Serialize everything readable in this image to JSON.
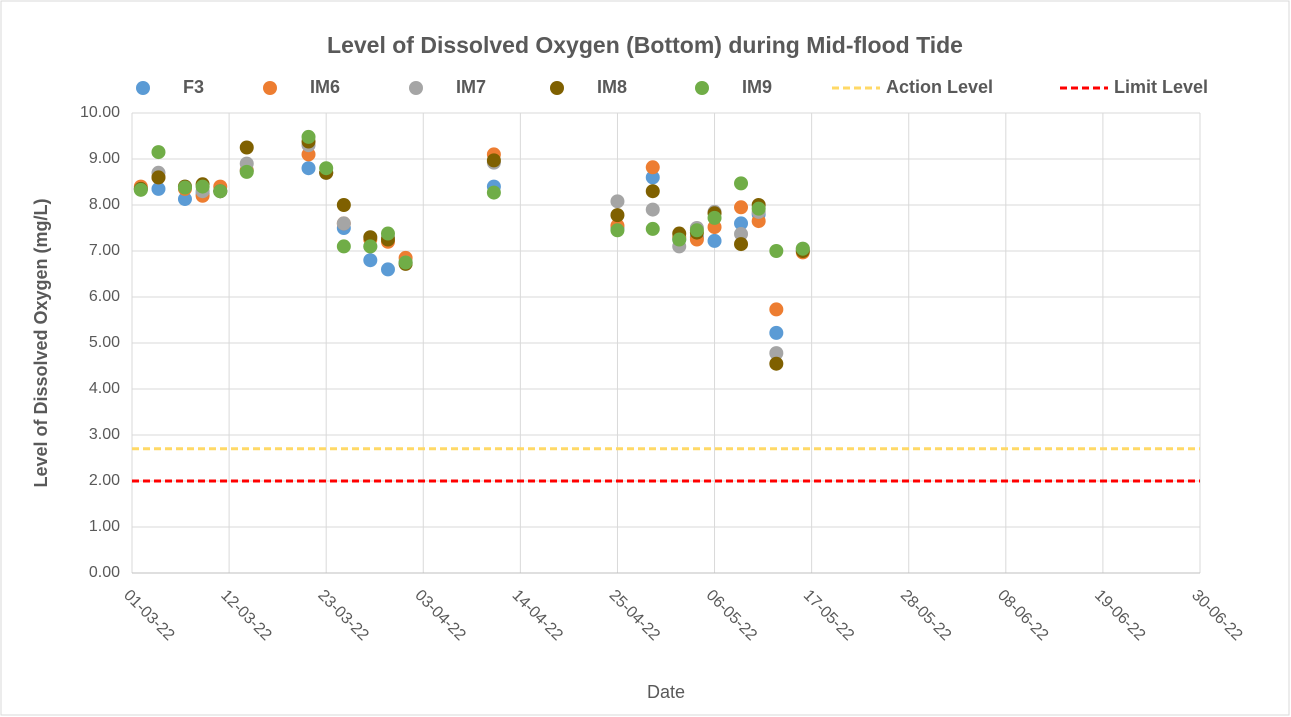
{
  "chart_data": {
    "type": "scatter",
    "title": "Level of Dissolved Oxygen (Bottom) during Mid-flood Tide",
    "xlabel": "Date",
    "ylabel": "Level of Dissolved Oxygen (mg/L)",
    "x": [
      "2022-03-02",
      "2022-03-04",
      "2022-03-07",
      "2022-03-09",
      "2022-03-11",
      "2022-03-14",
      "2022-03-21",
      "2022-03-23",
      "2022-03-25",
      "2022-03-28",
      "2022-03-30",
      "2022-04-01",
      "2022-04-11",
      "2022-04-25",
      "2022-04-29",
      "2022-05-02",
      "2022-05-04",
      "2022-05-06",
      "2022-05-09",
      "2022-05-11",
      "2022-05-13",
      "2022-05-16"
    ],
    "series": [
      {
        "name": "F3",
        "color": "#5b9bd5",
        "values": [
          8.35,
          8.35,
          8.13,
          8.25,
          8.3,
          8.75,
          8.8,
          8.7,
          7.5,
          6.8,
          6.6,
          6.75,
          8.4,
          7.5,
          8.6,
          7.25,
          7.3,
          7.22,
          7.6,
          7.8,
          5.22,
          7.0
        ]
      },
      {
        "name": "IM6",
        "color": "#ed7d31",
        "values": [
          8.4,
          8.6,
          8.35,
          8.2,
          8.4,
          8.75,
          9.1,
          8.7,
          7.6,
          7.25,
          7.2,
          6.85,
          9.1,
          7.55,
          8.82,
          7.3,
          7.25,
          7.52,
          7.95,
          7.65,
          5.73,
          6.97
        ]
      },
      {
        "name": "IM7",
        "color": "#a5a5a5",
        "values": [
          8.35,
          8.7,
          8.4,
          8.3,
          8.3,
          8.9,
          9.3,
          8.7,
          7.6,
          7.1,
          7.3,
          6.75,
          8.92,
          8.08,
          7.9,
          7.1,
          7.5,
          7.85,
          7.37,
          7.85,
          4.78,
          7.05
        ]
      },
      {
        "name": "IM8",
        "color": "#7f6000",
        "values": [
          8.35,
          8.6,
          8.4,
          8.45,
          8.3,
          9.25,
          9.38,
          8.7,
          8.0,
          7.3,
          7.25,
          6.72,
          8.97,
          7.78,
          8.3,
          7.38,
          7.4,
          7.82,
          7.15,
          8.0,
          4.55,
          7.0
        ]
      },
      {
        "name": "IM9",
        "color": "#70ad47",
        "values": [
          8.33,
          9.15,
          8.38,
          8.4,
          8.3,
          8.72,
          9.48,
          8.8,
          7.1,
          7.1,
          7.38,
          6.75,
          8.27,
          7.45,
          7.48,
          7.25,
          7.45,
          7.72,
          8.47,
          7.92,
          7.0,
          7.05
        ]
      }
    ],
    "lines": [
      {
        "name": "Action Level",
        "color": "#ffd966",
        "value": 2.7
      },
      {
        "name": "Limit Level",
        "color": "#ff0000",
        "value": 2.0
      }
    ],
    "xlim": [
      "2022-03-01",
      "2022-06-30"
    ],
    "xticks": [
      {
        "value": "2022-03-01",
        "label": "01-03-22"
      },
      {
        "value": "2022-03-12",
        "label": "12-03-22"
      },
      {
        "value": "2022-03-23",
        "label": "23-03-22"
      },
      {
        "value": "2022-04-03",
        "label": "03-04-22"
      },
      {
        "value": "2022-04-14",
        "label": "14-04-22"
      },
      {
        "value": "2022-04-25",
        "label": "25-04-22"
      },
      {
        "value": "2022-05-06",
        "label": "06-05-22"
      },
      {
        "value": "2022-05-17",
        "label": "17-05-22"
      },
      {
        "value": "2022-05-28",
        "label": "28-05-22"
      },
      {
        "value": "2022-06-08",
        "label": "08-06-22"
      },
      {
        "value": "2022-06-19",
        "label": "19-06-22"
      },
      {
        "value": "2022-06-30",
        "label": "30-06-22"
      }
    ],
    "ylim": [
      0,
      10
    ],
    "yticks": [
      {
        "value": 0,
        "label": "0.00"
      },
      {
        "value": 1,
        "label": "1.00"
      },
      {
        "value": 2,
        "label": "2.00"
      },
      {
        "value": 3,
        "label": "3.00"
      },
      {
        "value": 4,
        "label": "4.00"
      },
      {
        "value": 5,
        "label": "5.00"
      },
      {
        "value": 6,
        "label": "6.00"
      },
      {
        "value": 7,
        "label": "7.00"
      },
      {
        "value": 8,
        "label": "8.00"
      },
      {
        "value": 9,
        "label": "9.00"
      },
      {
        "value": 10,
        "label": "10.00"
      }
    ],
    "grid": true,
    "legend": "top"
  }
}
